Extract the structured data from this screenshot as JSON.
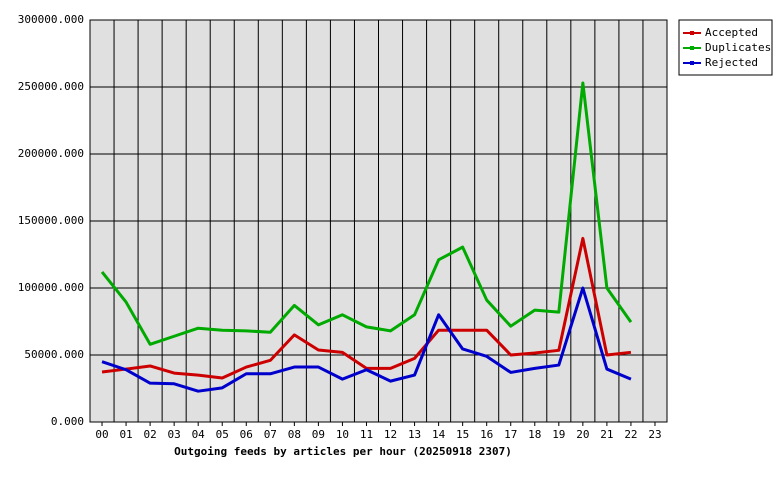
{
  "chart_data": {
    "type": "line",
    "title": "Outgoing feeds by articles per hour (20250918 2307)",
    "categories": [
      "00",
      "01",
      "02",
      "03",
      "04",
      "05",
      "06",
      "07",
      "08",
      "09",
      "10",
      "11",
      "12",
      "13",
      "14",
      "15",
      "16",
      "17",
      "18",
      "19",
      "20",
      "21",
      "22",
      "23"
    ],
    "series": [
      {
        "name": "Accepted",
        "color": "#cc0000",
        "values": [
          37300,
          39500,
          41800,
          36500,
          35000,
          32800,
          41000,
          46000,
          65000,
          53700,
          52000,
          40000,
          40000,
          47500,
          68500,
          68500,
          68500,
          50000,
          51500,
          53500,
          137000,
          50000,
          52000,
          null
        ]
      },
      {
        "name": "Duplicates",
        "color": "#00aa00",
        "values": [
          112000,
          89500,
          58000,
          64000,
          70000,
          68500,
          68000,
          67000,
          87000,
          72500,
          80000,
          71000,
          68000,
          80000,
          121000,
          130500,
          91000,
          71500,
          83500,
          82000,
          253000,
          100000,
          74500,
          null
        ]
      },
      {
        "name": "Rejected",
        "color": "#0000cc",
        "values": [
          45000,
          39000,
          29000,
          28500,
          23000,
          25500,
          36000,
          36000,
          41000,
          41000,
          32000,
          39000,
          30500,
          35000,
          80000,
          54500,
          49000,
          37000,
          40000,
          42500,
          100000,
          39500,
          32000,
          null
        ]
      }
    ],
    "ylim": [
      0,
      300000
    ],
    "yticks": [
      {
        "value": 0,
        "label": "0.000"
      },
      {
        "value": 50000,
        "label": "50000.000"
      },
      {
        "value": 100000,
        "label": "100000.000"
      },
      {
        "value": 150000,
        "label": "150000.000"
      },
      {
        "value": 200000,
        "label": "200000.000"
      },
      {
        "value": 250000,
        "label": "250000.000"
      },
      {
        "value": 300000,
        "label": "300000.000"
      }
    ],
    "grid": true,
    "legend": "right"
  }
}
